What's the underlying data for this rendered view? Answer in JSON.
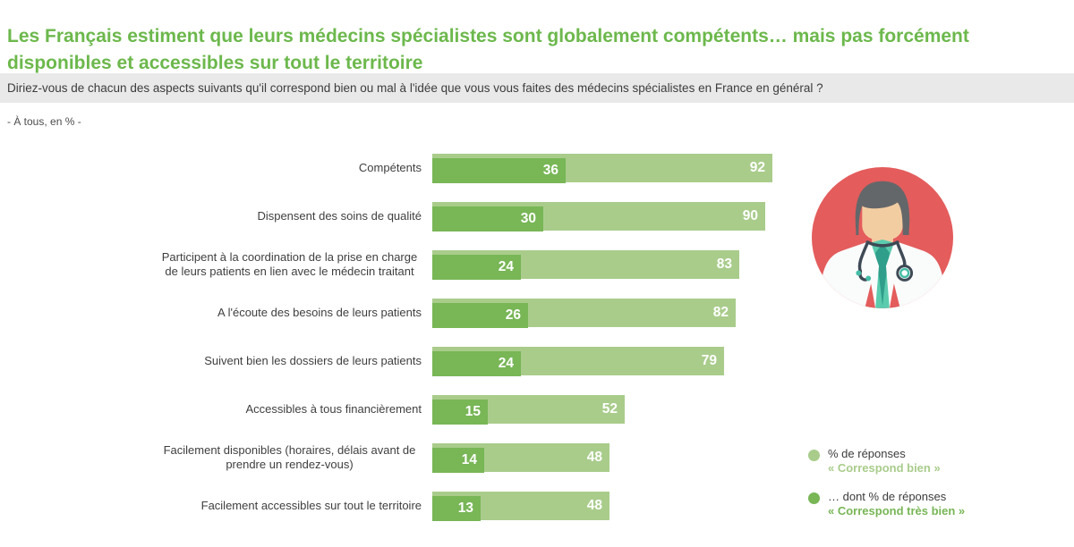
{
  "header": {
    "title": "Les Français estiment que leurs médecins spécialistes sont globalement compétents… mais pas forcément disponibles et accessibles sur tout le territoire"
  },
  "question": {
    "text": "Diriez-vous de chacun des aspects suivants qu'il correspond bien ou mal à l'idée que vous vous faites des médecins spécialistes en France en général ?"
  },
  "note": {
    "text": "- À tous, en % -"
  },
  "chart_data": {
    "type": "bar",
    "orientation": "horizontal",
    "unit": "%",
    "title": "",
    "xlim": [
      0,
      100
    ],
    "grid": false,
    "legend_position": "right",
    "categories": [
      "Compétents",
      "Dispensent des soins de qualité",
      "Participent à la coordination de la prise en charge de leurs patients en lien avec le médecin traitant",
      "A l'écoute des besoins de leurs patients",
      "Suivent bien les dossiers de leurs patients",
      "Accessibles à tous financièrement",
      "Facilement disponibles (horaires, délais avant de prendre un rendez-vous)",
      "Facilement accessibles sur tout le territoire"
    ],
    "series": [
      {
        "name": "% de réponses « Correspond bien »",
        "color": "#a9cc8b",
        "values": [
          92,
          90,
          83,
          82,
          79,
          52,
          48,
          48
        ]
      },
      {
        "name": "… dont % de réponses « Correspond très bien »",
        "color": "#78b656",
        "values": [
          36,
          30,
          24,
          26,
          24,
          15,
          14,
          13
        ]
      }
    ]
  },
  "legend": {
    "items": [
      {
        "line1": "% de réponses",
        "line2": "« Correspond bien »",
        "color": "#a9cc8b"
      },
      {
        "line1": "… dont % de réponses",
        "line2": "« Correspond très bien »",
        "color": "#78b656"
      }
    ]
  },
  "colors": {
    "title_green": "#6cb84c",
    "bar_light_green": "#a9cc8b",
    "bar_dark_green": "#78b656",
    "question_band_gray": "#e9e9e9",
    "text_dark": "#3c3c3c",
    "value_text_white": "#ffffff",
    "avatar_red": "#e45c5c"
  },
  "avatar": {
    "icon": "doctor-illustration"
  }
}
